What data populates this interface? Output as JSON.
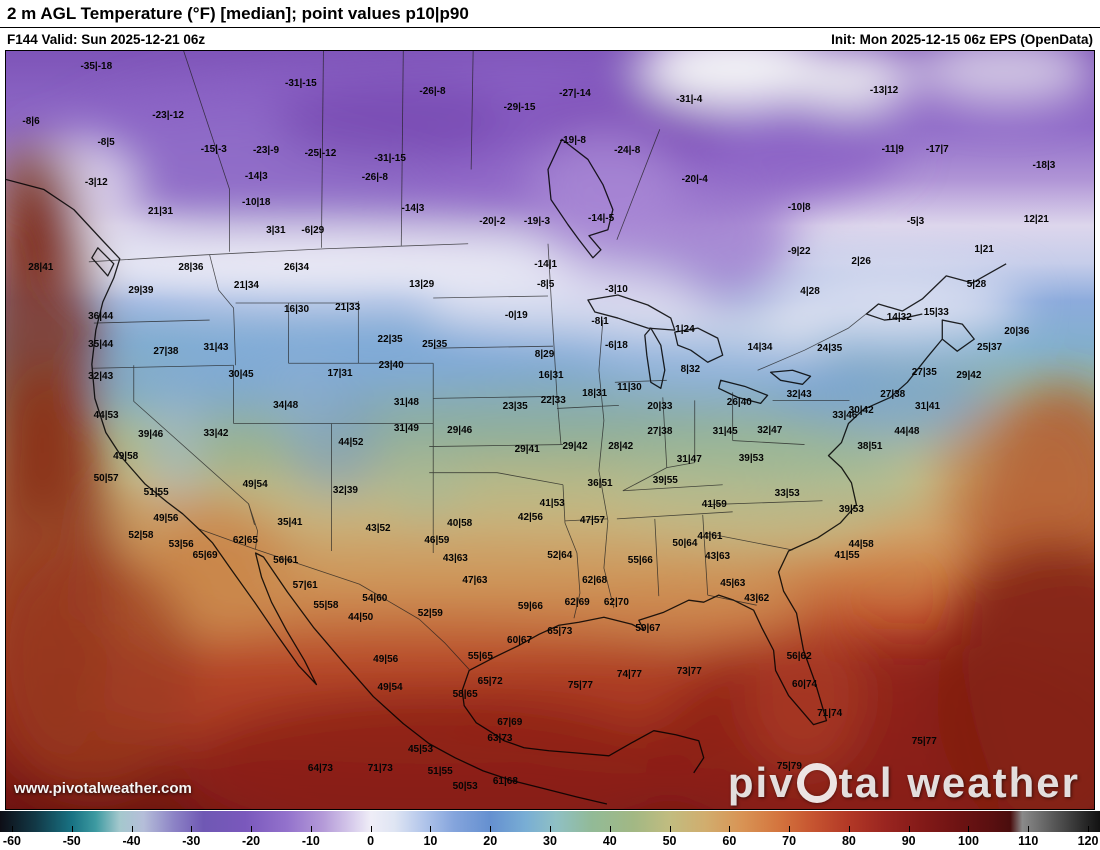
{
  "header": {
    "title": "2 m AGL Temperature (°F) [median]; point values p10|p90",
    "valid": "F144 Valid: Sun 2025-12-21 06z",
    "init": "Init: Mon 2025-12-15 06z EPS (OpenData)"
  },
  "watermark": {
    "url": "www.pivotalweather.com",
    "brand_part1": "piv",
    "brand_part2": "tal weather"
  },
  "colorbar": {
    "unit": "°F",
    "domain": [
      -62,
      122
    ],
    "ticks": [
      -60,
      -50,
      -40,
      -30,
      -20,
      -10,
      0,
      10,
      20,
      30,
      40,
      50,
      60,
      70,
      80,
      90,
      100,
      110,
      120
    ],
    "stops": [
      {
        "v": -62,
        "c": "#0e0e16"
      },
      {
        "v": -56,
        "c": "#123947"
      },
      {
        "v": -50,
        "c": "#187283"
      },
      {
        "v": -46,
        "c": "#3d9aa1"
      },
      {
        "v": -42,
        "c": "#a4c8cd"
      },
      {
        "v": -38,
        "c": "#b5bed9"
      },
      {
        "v": -33,
        "c": "#8d84c6"
      },
      {
        "v": -28,
        "c": "#6f58b4"
      },
      {
        "v": -21,
        "c": "#7a58bc"
      },
      {
        "v": -14,
        "c": "#9372cc"
      },
      {
        "v": -8,
        "c": "#b49ad8"
      },
      {
        "v": -3,
        "c": "#d8cdec"
      },
      {
        "v": 0,
        "c": "#efedf7"
      },
      {
        "v": 4,
        "c": "#dfe5f3"
      },
      {
        "v": 9,
        "c": "#b0c4ea"
      },
      {
        "v": 14,
        "c": "#84a4dc"
      },
      {
        "v": 20,
        "c": "#6590d0"
      },
      {
        "v": 26,
        "c": "#79aed4"
      },
      {
        "v": 31,
        "c": "#8fc0c4"
      },
      {
        "v": 37,
        "c": "#92ba97"
      },
      {
        "v": 44,
        "c": "#a2b884"
      },
      {
        "v": 50,
        "c": "#c1bc80"
      },
      {
        "v": 56,
        "c": "#d1ad6e"
      },
      {
        "v": 62,
        "c": "#d89455"
      },
      {
        "v": 68,
        "c": "#d4763f"
      },
      {
        "v": 74,
        "c": "#c65430"
      },
      {
        "v": 80,
        "c": "#b23826"
      },
      {
        "v": 86,
        "c": "#9a2520"
      },
      {
        "v": 92,
        "c": "#841a18"
      },
      {
        "v": 98,
        "c": "#6f1313"
      },
      {
        "v": 104,
        "c": "#590f10"
      },
      {
        "v": 107,
        "c": "#4a0d0d"
      },
      {
        "v": 109,
        "c": "#8a8a8a"
      },
      {
        "v": 114,
        "c": "#5a5a5a"
      },
      {
        "v": 120,
        "c": "#232323"
      },
      {
        "v": 122,
        "c": "#121212"
      }
    ]
  },
  "map": {
    "points": [
      [
        8.3,
        2.1,
        "-35|-18"
      ],
      [
        27.1,
        4.4,
        "-31|-15"
      ],
      [
        39.2,
        5.4,
        "-26|-8"
      ],
      [
        52.3,
        5.7,
        "-27|-14"
      ],
      [
        62.8,
        6.4,
        "-31|-4"
      ],
      [
        80.7,
        5.3,
        "-13|12"
      ],
      [
        2.3,
        9.4,
        "-8|6"
      ],
      [
        14.9,
        8.6,
        "-23|-12"
      ],
      [
        47.2,
        7.5,
        "-29|-15"
      ],
      [
        57.1,
        13.2,
        "-24|-8"
      ],
      [
        81.5,
        13.0,
        "-11|9"
      ],
      [
        85.6,
        13.0,
        "-17|7"
      ],
      [
        9.2,
        12.1,
        "-8|5"
      ],
      [
        19.1,
        13.0,
        "-15|-3"
      ],
      [
        23.9,
        13.2,
        "-23|-9"
      ],
      [
        28.9,
        13.6,
        "-25|-12"
      ],
      [
        35.3,
        14.3,
        "-31|-15"
      ],
      [
        52.1,
        11.9,
        "-19|-8"
      ],
      [
        8.3,
        17.4,
        "-3|12"
      ],
      [
        23.0,
        16.6,
        "-14|3"
      ],
      [
        33.9,
        16.7,
        "-26|-8"
      ],
      [
        63.3,
        17.0,
        "-20|-4"
      ],
      [
        95.4,
        15.2,
        "-18|3"
      ],
      [
        14.2,
        21.3,
        "21|31"
      ],
      [
        23.0,
        20.0,
        "-10|18"
      ],
      [
        37.4,
        20.9,
        "-14|3"
      ],
      [
        44.7,
        22.6,
        "-20|-2"
      ],
      [
        48.8,
        22.6,
        "-19|-3"
      ],
      [
        54.7,
        22.1,
        "-14|-5"
      ],
      [
        72.9,
        20.7,
        "-10|8"
      ],
      [
        83.6,
        22.6,
        "-5|3"
      ],
      [
        94.7,
        22.3,
        "12|21"
      ],
      [
        24.8,
        23.7,
        "3|31"
      ],
      [
        28.2,
        23.7,
        "-6|29"
      ],
      [
        3.2,
        28.6,
        "28|41"
      ],
      [
        17.0,
        28.6,
        "28|36"
      ],
      [
        26.7,
        28.6,
        "26|34"
      ],
      [
        49.6,
        28.2,
        "-14|1"
      ],
      [
        72.9,
        26.5,
        "-9|22"
      ],
      [
        78.6,
        27.8,
        "2|26"
      ],
      [
        89.9,
        26.2,
        "1|21"
      ],
      [
        12.4,
        31.7,
        "29|39"
      ],
      [
        22.1,
        31.0,
        "21|34"
      ],
      [
        38.2,
        30.9,
        "13|29"
      ],
      [
        49.6,
        30.9,
        "-8|5"
      ],
      [
        56.1,
        31.5,
        "-3|10"
      ],
      [
        73.9,
        31.8,
        "4|28"
      ],
      [
        89.2,
        30.9,
        "5|28"
      ],
      [
        8.7,
        35.1,
        "36|44"
      ],
      [
        26.7,
        34.2,
        "16|30"
      ],
      [
        31.4,
        33.9,
        "21|33"
      ],
      [
        46.9,
        35.0,
        "-0|19"
      ],
      [
        54.6,
        35.8,
        "-8|1"
      ],
      [
        62.4,
        36.8,
        "1|24"
      ],
      [
        82.1,
        35.2,
        "14|32"
      ],
      [
        85.5,
        34.6,
        "15|33"
      ],
      [
        92.9,
        37.1,
        "20|36"
      ],
      [
        8.7,
        38.8,
        "35|44"
      ],
      [
        14.7,
        39.7,
        "27|38"
      ],
      [
        19.3,
        39.2,
        "31|43"
      ],
      [
        35.3,
        38.1,
        "22|35"
      ],
      [
        39.4,
        38.8,
        "25|35"
      ],
      [
        49.5,
        40.1,
        "8|29"
      ],
      [
        56.1,
        38.9,
        "-6|18"
      ],
      [
        69.3,
        39.2,
        "14|34"
      ],
      [
        75.7,
        39.3,
        "24|35"
      ],
      [
        90.4,
        39.2,
        "25|37"
      ],
      [
        8.7,
        43.0,
        "32|43"
      ],
      [
        21.6,
        42.8,
        "30|45"
      ],
      [
        30.7,
        42.6,
        "17|31"
      ],
      [
        35.4,
        41.6,
        "23|40"
      ],
      [
        50.1,
        42.9,
        "16|31"
      ],
      [
        57.3,
        44.5,
        "11|30"
      ],
      [
        62.9,
        42.1,
        "8|32"
      ],
      [
        84.4,
        42.5,
        "27|35"
      ],
      [
        88.5,
        42.9,
        "29|42"
      ],
      [
        9.2,
        48.1,
        "44|53"
      ],
      [
        25.7,
        46.8,
        "34|48"
      ],
      [
        36.8,
        46.5,
        "31|48"
      ],
      [
        46.8,
        46.9,
        "23|35"
      ],
      [
        50.3,
        46.2,
        "22|33"
      ],
      [
        54.1,
        45.2,
        "18|31"
      ],
      [
        60.1,
        46.9,
        "20|33"
      ],
      [
        67.4,
        46.4,
        "26|40"
      ],
      [
        72.9,
        45.4,
        "32|43"
      ],
      [
        77.1,
        48.2,
        "33|46"
      ],
      [
        78.6,
        47.5,
        "30|42"
      ],
      [
        81.5,
        45.4,
        "27|38"
      ],
      [
        84.7,
        47.0,
        "31|41"
      ],
      [
        13.3,
        50.7,
        "39|46"
      ],
      [
        19.3,
        50.5,
        "33|42"
      ],
      [
        31.7,
        51.7,
        "44|52"
      ],
      [
        36.8,
        49.9,
        "31|49"
      ],
      [
        41.7,
        50.1,
        "29|46"
      ],
      [
        47.9,
        52.7,
        "29|41"
      ],
      [
        52.3,
        52.3,
        "29|42"
      ],
      [
        56.5,
        52.2,
        "28|42"
      ],
      [
        60.1,
        50.3,
        "27|38"
      ],
      [
        66.1,
        50.2,
        "31|45"
      ],
      [
        70.2,
        50.1,
        "32|47"
      ],
      [
        82.8,
        50.3,
        "44|48"
      ],
      [
        79.4,
        52.3,
        "38|51"
      ],
      [
        11.0,
        53.6,
        "49|58"
      ],
      [
        9.2,
        56.4,
        "50|57"
      ],
      [
        22.9,
        57.3,
        "49|54"
      ],
      [
        31.2,
        58.0,
        "32|39"
      ],
      [
        62.8,
        54.0,
        "31|47"
      ],
      [
        68.5,
        53.8,
        "39|53"
      ],
      [
        13.8,
        58.3,
        "51|55"
      ],
      [
        54.6,
        57.1,
        "36|51"
      ],
      [
        60.6,
        56.7,
        "39|55"
      ],
      [
        14.7,
        61.7,
        "49|56"
      ],
      [
        26.1,
        62.3,
        "35|41"
      ],
      [
        34.2,
        63.0,
        "43|52"
      ],
      [
        41.7,
        62.4,
        "40|58"
      ],
      [
        48.2,
        61.6,
        "42|56"
      ],
      [
        50.2,
        59.7,
        "41|53"
      ],
      [
        53.9,
        62.0,
        "47|57"
      ],
      [
        65.1,
        59.9,
        "41|59"
      ],
      [
        71.8,
        58.5,
        "33|53"
      ],
      [
        77.7,
        60.5,
        "39|53"
      ],
      [
        12.4,
        64.0,
        "52|58"
      ],
      [
        16.1,
        65.2,
        "53|56"
      ],
      [
        22.0,
        64.6,
        "62|65"
      ],
      [
        39.6,
        64.6,
        "46|59"
      ],
      [
        62.4,
        65.0,
        "50|64"
      ],
      [
        64.7,
        64.1,
        "44|61"
      ],
      [
        78.6,
        65.2,
        "44|58"
      ],
      [
        77.3,
        66.6,
        "41|55"
      ],
      [
        18.3,
        66.6,
        "65|69"
      ],
      [
        25.7,
        67.3,
        "56|61"
      ],
      [
        41.3,
        67.0,
        "43|63"
      ],
      [
        50.9,
        66.6,
        "52|64"
      ],
      [
        58.3,
        67.3,
        "55|66"
      ],
      [
        65.4,
        66.8,
        "43|63"
      ],
      [
        66.8,
        70.3,
        "45|63"
      ],
      [
        69.0,
        72.3,
        "43|62"
      ],
      [
        27.5,
        70.6,
        "57|61"
      ],
      [
        33.9,
        72.3,
        "54|60"
      ],
      [
        54.1,
        69.9,
        "62|68"
      ],
      [
        43.1,
        69.9,
        "47|63"
      ],
      [
        29.4,
        73.2,
        "55|58"
      ],
      [
        32.6,
        74.8,
        "44|50"
      ],
      [
        39.0,
        74.3,
        "52|59"
      ],
      [
        48.2,
        73.4,
        "59|66"
      ],
      [
        52.5,
        72.8,
        "62|69"
      ],
      [
        56.1,
        72.8,
        "62|70"
      ],
      [
        50.9,
        76.6,
        "65|73"
      ],
      [
        47.2,
        77.9,
        "60|67"
      ],
      [
        59.0,
        76.3,
        "59|67"
      ],
      [
        34.9,
        80.3,
        "49|56"
      ],
      [
        43.6,
        79.9,
        "55|65"
      ],
      [
        52.8,
        83.8,
        "75|77"
      ],
      [
        57.3,
        82.3,
        "74|77"
      ],
      [
        62.8,
        81.9,
        "73|77"
      ],
      [
        35.3,
        84.1,
        "49|54"
      ],
      [
        44.5,
        83.2,
        "65|72"
      ],
      [
        72.9,
        79.9,
        "56|62"
      ],
      [
        73.4,
        83.6,
        "60|74"
      ],
      [
        75.7,
        87.5,
        "71|74"
      ],
      [
        42.2,
        84.9,
        "58|65"
      ],
      [
        46.3,
        88.7,
        "67|69"
      ],
      [
        45.4,
        90.7,
        "63|73"
      ],
      [
        38.1,
        92.2,
        "45|53"
      ],
      [
        28.9,
        94.7,
        "64|73"
      ],
      [
        34.4,
        94.7,
        "71|73"
      ],
      [
        39.9,
        95.1,
        "51|55"
      ],
      [
        42.2,
        97.1,
        "50|53"
      ],
      [
        45.9,
        96.4,
        "61|68"
      ],
      [
        84.4,
        91.1,
        "75|77"
      ],
      [
        72.0,
        94.4,
        "75|79"
      ]
    ]
  }
}
